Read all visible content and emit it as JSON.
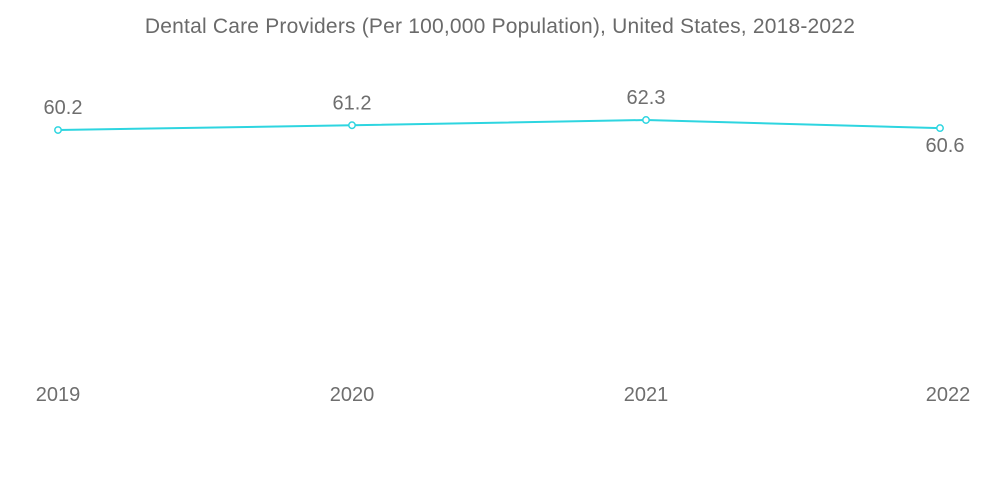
{
  "chart_data": {
    "type": "line",
    "title": "Dental Care Providers (Per 100,000 Population), United States, 2018-2022",
    "categories": [
      "2019",
      "2020",
      "2021",
      "2022"
    ],
    "values": [
      60.2,
      61.2,
      62.3,
      60.6
    ],
    "data_labels": [
      "60.2",
      "61.2",
      "62.3",
      "60.6"
    ],
    "label_positions": [
      "above",
      "above",
      "above",
      "below"
    ],
    "xlabel": "",
    "ylabel": "",
    "ylim": [
      0,
      73
    ],
    "grid": false,
    "legend": false,
    "colors": {
      "line": "#2ed5e0",
      "marker_fill": "#ffffff",
      "label_text": "#6e6e6e",
      "title_text": "#6a6a6a",
      "background": "#ffffff"
    }
  }
}
